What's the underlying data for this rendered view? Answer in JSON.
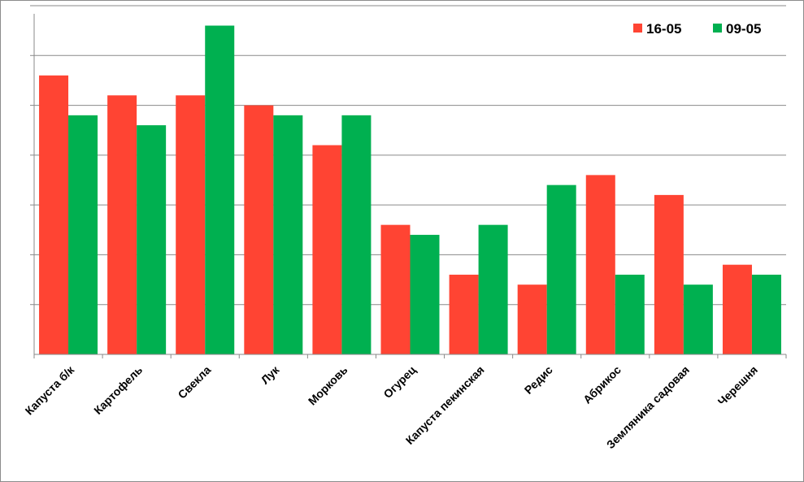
{
  "chart_data": {
    "type": "bar",
    "categories": [
      "Капуста б/к",
      "Картофель",
      "Свекла",
      "Лук",
      "Морковь",
      "Огурец",
      "Капуста пекинская",
      "Редис",
      "Абрикос",
      "Земляника садовая",
      "Черешня"
    ],
    "series": [
      {
        "name": "16-05",
        "color": "#ff4433",
        "values": [
          28,
          26,
          26,
          25,
          21,
          13,
          8,
          7,
          18,
          16,
          9
        ]
      },
      {
        "name": "09-05",
        "color": "#00b050",
        "values": [
          24,
          23,
          33,
          24,
          24,
          12,
          13,
          17,
          8,
          7,
          8
        ]
      }
    ],
    "ylim": [
      0,
      35
    ],
    "ytick_step": 5,
    "grid": true,
    "legend_position": "top-right",
    "title": "",
    "xlabel": "",
    "ylabel": ""
  }
}
